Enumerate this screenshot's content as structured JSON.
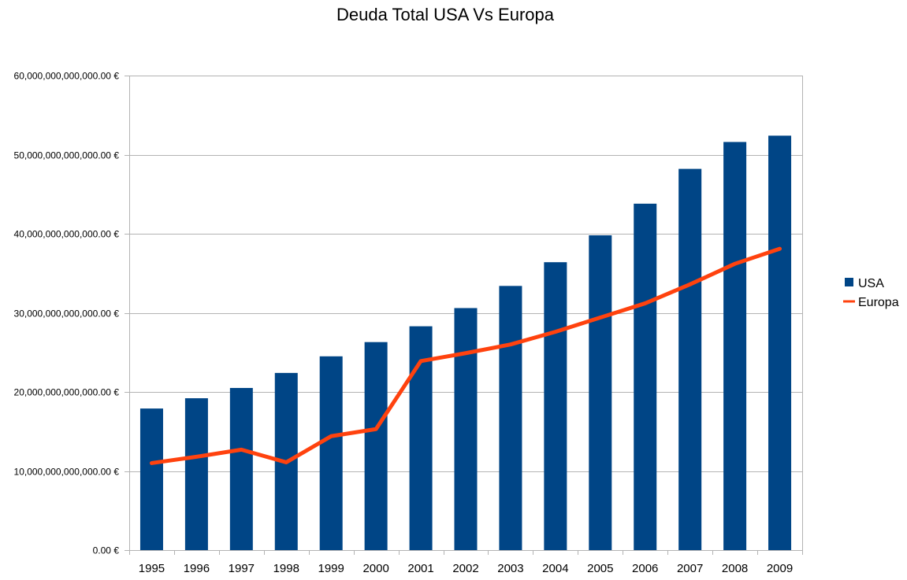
{
  "chart_data": {
    "type": "bar",
    "title": "Deuda Total USA Vs Europa",
    "xlabel": "",
    "ylabel": "",
    "categories": [
      "1995",
      "1996",
      "1997",
      "1998",
      "1999",
      "2000",
      "2001",
      "2002",
      "2003",
      "2004",
      "2005",
      "2006",
      "2007",
      "2008",
      "2009"
    ],
    "ylim": [
      0,
      60000000000000
    ],
    "yticks": [
      0,
      10000000000000,
      20000000000000,
      30000000000000,
      40000000000000,
      50000000000000,
      60000000000000
    ],
    "ytick_labels": [
      "0.00 €",
      "10,000,000,000,000.00 €",
      "20,000,000,000,000.00 €",
      "30,000,000,000,000.00 €",
      "40,000,000,000,000.00 €",
      "50,000,000,000,000.00 €",
      "60,000,000,000,000.00 €"
    ],
    "grid": true,
    "legend_position": "right",
    "series": [
      {
        "name": "USA",
        "type": "bar",
        "color": "#004586",
        "values": [
          17900000000000,
          19200000000000,
          20500000000000,
          22400000000000,
          24500000000000,
          26300000000000,
          28300000000000,
          30600000000000,
          33400000000000,
          36400000000000,
          39800000000000,
          43800000000000,
          48200000000000,
          51600000000000,
          52400000000000
        ]
      },
      {
        "name": "Europa",
        "type": "line",
        "color": "#ff420e",
        "values": [
          11000000000000,
          11800000000000,
          12700000000000,
          11100000000000,
          14400000000000,
          15300000000000,
          23900000000000,
          24900000000000,
          26000000000000,
          27600000000000,
          29400000000000,
          31200000000000,
          33600000000000,
          36200000000000,
          38100000000000
        ]
      }
    ]
  }
}
